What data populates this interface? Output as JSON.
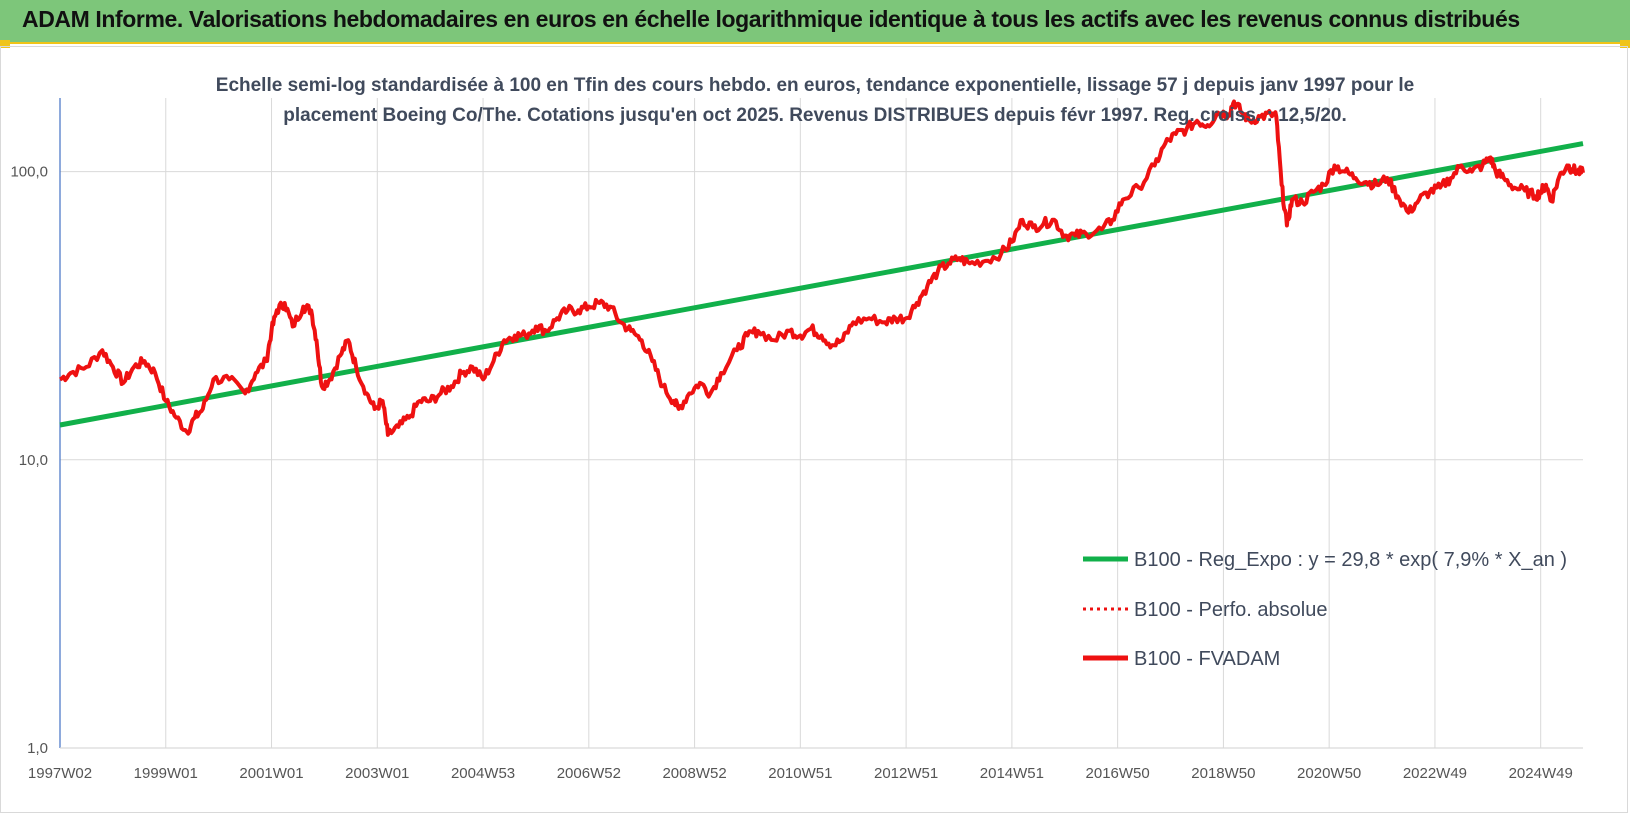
{
  "header": {
    "title": "ADAM Informe. Valorisations hebdomadaires en euros en échelle logarithmique identique à tous les actifs avec les revenus connus distribués"
  },
  "colors": {
    "header_bg": "#7dc67a",
    "accent": "#f0c419",
    "trend": "#11b04a",
    "price": "#ee1111",
    "axis": "#4472c4",
    "grid": "#d9d9d9"
  },
  "chart_data": {
    "type": "line",
    "title_lines": [
      "Echelle semi-log standardisée à 100 en Tfin des cours hebdo. en euros, tendance exponentielle, lissage 57 j depuis janv 1997 pour le",
      "placement Boeing Co/The. Cotations jusqu'en oct 2025. Revenus DISTRIBUES depuis févr 1997. Reg. croiss. : 12,5/20."
    ],
    "y_scale": "log",
    "ylim": [
      1,
      180
    ],
    "y_ticks": [
      {
        "value": 1,
        "label": "1,0"
      },
      {
        "value": 10,
        "label": "10,0"
      },
      {
        "value": 100,
        "label": "100,0"
      }
    ],
    "xlim": [
      1997.0,
      2025.8
    ],
    "x_ticks": [
      {
        "value": 1997.0,
        "label": "1997W02"
      },
      {
        "value": 1999.0,
        "label": "1999W01"
      },
      {
        "value": 2001.0,
        "label": "2001W01"
      },
      {
        "value": 2003.0,
        "label": "2003W01"
      },
      {
        "value": 2005.0,
        "label": "2004W53"
      },
      {
        "value": 2007.0,
        "label": "2006W52"
      },
      {
        "value": 2009.0,
        "label": "2008W52"
      },
      {
        "value": 2011.0,
        "label": "2010W51"
      },
      {
        "value": 2013.0,
        "label": "2012W51"
      },
      {
        "value": 2015.0,
        "label": "2014W51"
      },
      {
        "value": 2017.0,
        "label": "2016W50"
      },
      {
        "value": 2019.0,
        "label": "2018W50"
      },
      {
        "value": 2021.0,
        "label": "2020W50"
      },
      {
        "value": 2023.0,
        "label": "2022W49"
      },
      {
        "value": 2025.0,
        "label": "2024W49"
      }
    ],
    "grid": true,
    "legend_position": "bottom-right",
    "series": [
      {
        "name": "B100 - Reg_Expo : y = 29,8 * exp( 7,9% *  X_an )",
        "style": "solid",
        "color": "#11b04a",
        "points": [
          [
            1997.0,
            13.2
          ],
          [
            2025.8,
            125
          ]
        ]
      },
      {
        "name": "B100 - Perfo. absolue",
        "style": "dotted",
        "color": "#ee1111",
        "points": []
      },
      {
        "name": "B100 - FVADAM",
        "style": "solid",
        "color": "#ee1111",
        "points": [
          [
            1997.0,
            19
          ],
          [
            1997.2,
            20
          ],
          [
            1997.5,
            21
          ],
          [
            1997.8,
            24
          ],
          [
            1998.0,
            21
          ],
          [
            1998.2,
            18.5
          ],
          [
            1998.4,
            21
          ],
          [
            1998.6,
            22
          ],
          [
            1998.8,
            20
          ],
          [
            1999.0,
            16
          ],
          [
            1999.2,
            14
          ],
          [
            1999.4,
            12.5
          ],
          [
            1999.55,
            14
          ],
          [
            1999.7,
            15
          ],
          [
            1999.9,
            19
          ],
          [
            2000.2,
            19
          ],
          [
            2000.5,
            17
          ],
          [
            2000.7,
            20
          ],
          [
            2000.9,
            22
          ],
          [
            2001.0,
            28
          ],
          [
            2001.1,
            33
          ],
          [
            2001.25,
            35
          ],
          [
            2001.4,
            29
          ],
          [
            2001.6,
            34
          ],
          [
            2001.75,
            33
          ],
          [
            2001.85,
            26
          ],
          [
            2001.95,
            18
          ],
          [
            2002.1,
            19
          ],
          [
            2002.3,
            23
          ],
          [
            2002.45,
            26
          ],
          [
            2002.6,
            21
          ],
          [
            2002.8,
            17
          ],
          [
            2002.95,
            15
          ],
          [
            2003.1,
            16
          ],
          [
            2003.2,
            12.2
          ],
          [
            2003.4,
            13
          ],
          [
            2003.6,
            14
          ],
          [
            2003.8,
            16
          ],
          [
            2004.0,
            16
          ],
          [
            2004.2,
            17
          ],
          [
            2004.4,
            18
          ],
          [
            2004.6,
            20
          ],
          [
            2004.8,
            21
          ],
          [
            2005.0,
            19
          ],
          [
            2005.2,
            22
          ],
          [
            2005.4,
            26
          ],
          [
            2005.6,
            27
          ],
          [
            2005.8,
            27
          ],
          [
            2006.0,
            29
          ],
          [
            2006.2,
            28
          ],
          [
            2006.4,
            31
          ],
          [
            2006.6,
            33
          ],
          [
            2006.8,
            33
          ],
          [
            2007.0,
            34
          ],
          [
            2007.2,
            35
          ],
          [
            2007.4,
            34
          ],
          [
            2007.6,
            30
          ],
          [
            2007.8,
            28
          ],
          [
            2008.0,
            26
          ],
          [
            2008.2,
            22
          ],
          [
            2008.4,
            18
          ],
          [
            2008.6,
            16
          ],
          [
            2008.7,
            15
          ],
          [
            2008.9,
            17
          ],
          [
            2009.1,
            18.5
          ],
          [
            2009.3,
            17
          ],
          [
            2009.5,
            20
          ],
          [
            2009.8,
            24
          ],
          [
            2010.0,
            27
          ],
          [
            2010.2,
            28
          ],
          [
            2010.5,
            26
          ],
          [
            2010.8,
            28
          ],
          [
            2011.0,
            27
          ],
          [
            2011.2,
            28.5
          ],
          [
            2011.4,
            27
          ],
          [
            2011.6,
            25
          ],
          [
            2011.8,
            26
          ],
          [
            2012.0,
            30
          ],
          [
            2012.3,
            31
          ],
          [
            2012.6,
            30
          ],
          [
            2012.8,
            31
          ],
          [
            2013.0,
            31
          ],
          [
            2013.2,
            35
          ],
          [
            2013.4,
            40
          ],
          [
            2013.6,
            45
          ],
          [
            2013.8,
            48
          ],
          [
            2014.0,
            50
          ],
          [
            2014.2,
            48
          ],
          [
            2014.5,
            49
          ],
          [
            2014.8,
            52
          ],
          [
            2015.0,
            57
          ],
          [
            2015.2,
            68
          ],
          [
            2015.4,
            64
          ],
          [
            2015.6,
            66
          ],
          [
            2015.8,
            68
          ],
          [
            2016.0,
            60
          ],
          [
            2016.2,
            60
          ],
          [
            2016.4,
            61
          ],
          [
            2016.7,
            63
          ],
          [
            2016.9,
            68
          ],
          [
            2017.1,
            80
          ],
          [
            2017.4,
            88
          ],
          [
            2017.7,
            105
          ],
          [
            2017.9,
            125
          ],
          [
            2018.1,
            135
          ],
          [
            2018.3,
            140
          ],
          [
            2018.5,
            150
          ],
          [
            2018.7,
            145
          ],
          [
            2018.9,
            160
          ],
          [
            2019.1,
            158
          ],
          [
            2019.2,
            175
          ],
          [
            2019.35,
            160
          ],
          [
            2019.5,
            150
          ],
          [
            2019.7,
            155
          ],
          [
            2019.9,
            158
          ],
          [
            2020.0,
            155
          ],
          [
            2020.1,
            90
          ],
          [
            2020.2,
            65
          ],
          [
            2020.3,
            80
          ],
          [
            2020.5,
            78
          ],
          [
            2020.7,
            85
          ],
          [
            2020.9,
            90
          ],
          [
            2021.1,
            105
          ],
          [
            2021.3,
            100
          ],
          [
            2021.5,
            95
          ],
          [
            2021.7,
            92
          ],
          [
            2021.9,
            90
          ],
          [
            2022.1,
            95
          ],
          [
            2022.3,
            82
          ],
          [
            2022.5,
            72
          ],
          [
            2022.7,
            80
          ],
          [
            2022.9,
            85
          ],
          [
            2023.1,
            88
          ],
          [
            2023.3,
            95
          ],
          [
            2023.5,
            105
          ],
          [
            2023.7,
            100
          ],
          [
            2023.9,
            105
          ],
          [
            2024.05,
            112
          ],
          [
            2024.15,
            100
          ],
          [
            2024.3,
            95
          ],
          [
            2024.5,
            88
          ],
          [
            2024.7,
            86
          ],
          [
            2024.9,
            82
          ],
          [
            2025.0,
            85
          ],
          [
            2025.1,
            90
          ],
          [
            2025.2,
            79
          ],
          [
            2025.35,
            96
          ],
          [
            2025.5,
            105
          ],
          [
            2025.6,
            102
          ],
          [
            2025.7,
            100
          ],
          [
            2025.8,
            99
          ]
        ]
      }
    ]
  }
}
